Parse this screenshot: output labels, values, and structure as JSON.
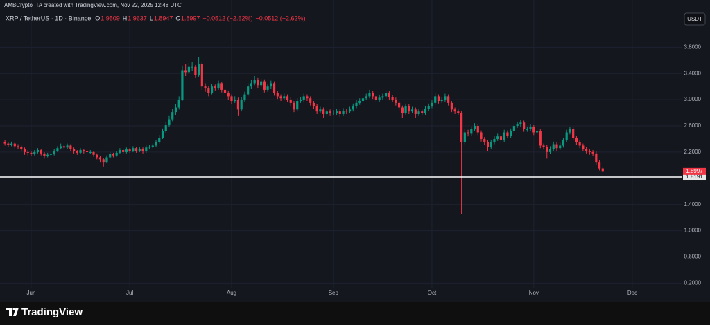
{
  "header": {
    "credit": "AMBCrypto_TA created with TradingView.com, Nov 22, 2025 12:48 UTC"
  },
  "chart_data": {
    "type": "candlestick",
    "symbol": "XRP / TetherUS · 1D · Binance",
    "ohlc_legend": [
      {
        "key": "O",
        "value": 1.9509
      },
      {
        "key": "H",
        "value": 1.9637
      },
      {
        "key": "L",
        "value": 1.8947
      },
      {
        "key": "C",
        "value": 1.8997
      }
    ],
    "change": [
      "−0.0512 (−2.62%)",
      "−0.0512 (−2.62%)"
    ],
    "currency": "USDT",
    "up_color": "#089981",
    "down_color": "#f23645",
    "grid": true,
    "xlim": [
      -1.5,
      206
    ],
    "xticks": [
      {
        "value": 8,
        "label": "Jun"
      },
      {
        "value": 38,
        "label": "Jul"
      },
      {
        "value": 69,
        "label": "Aug"
      },
      {
        "value": 100,
        "label": "Sep"
      },
      {
        "value": 130,
        "label": "Oct"
      },
      {
        "value": 161,
        "label": "Nov"
      },
      {
        "value": 191,
        "label": "Dec"
      }
    ],
    "ylim": [
      0.12,
      4.12
    ],
    "yticks": [
      {
        "value": 0.2,
        "label": "0.2000"
      },
      {
        "value": 0.6,
        "label": "0.6000"
      },
      {
        "value": 1.0,
        "label": "1.0000"
      },
      {
        "value": 1.4,
        "label": "1.4000"
      },
      {
        "value": 2.2,
        "label": "2.2000"
      },
      {
        "value": 2.6,
        "label": "2.6000"
      },
      {
        "value": 3.0,
        "label": "3.0000"
      },
      {
        "value": 3.4,
        "label": "3.4000"
      },
      {
        "value": 3.8,
        "label": "3.8000"
      }
    ],
    "last_price": {
      "value": 1.8997,
      "label": "1.8997"
    },
    "price_line": {
      "value": 1.8191,
      "label": "1.8191"
    },
    "ohlc": [
      [
        2.35,
        2.38,
        2.3,
        2.33
      ],
      [
        2.33,
        2.35,
        2.28,
        2.31
      ],
      [
        2.31,
        2.36,
        2.29,
        2.33
      ],
      [
        2.33,
        2.35,
        2.26,
        2.29
      ],
      [
        2.29,
        2.32,
        2.25,
        2.28
      ],
      [
        2.28,
        2.3,
        2.22,
        2.25
      ],
      [
        2.25,
        2.27,
        2.16,
        2.2
      ],
      [
        2.2,
        2.23,
        2.15,
        2.19
      ],
      [
        2.19,
        2.22,
        2.14,
        2.17
      ],
      [
        2.17,
        2.23,
        2.15,
        2.2
      ],
      [
        2.2,
        2.26,
        2.18,
        2.23
      ],
      [
        2.23,
        2.25,
        2.15,
        2.18
      ],
      [
        2.18,
        2.2,
        2.1,
        2.14
      ],
      [
        2.14,
        2.19,
        2.12,
        2.16
      ],
      [
        2.16,
        2.2,
        2.13,
        2.17
      ],
      [
        2.17,
        2.25,
        2.15,
        2.22
      ],
      [
        2.22,
        2.29,
        2.2,
        2.26
      ],
      [
        2.26,
        2.33,
        2.24,
        2.29
      ],
      [
        2.29,
        2.31,
        2.24,
        2.27
      ],
      [
        2.27,
        2.33,
        2.25,
        2.3
      ],
      [
        2.3,
        2.32,
        2.22,
        2.25
      ],
      [
        2.25,
        2.27,
        2.18,
        2.21
      ],
      [
        2.21,
        2.23,
        2.16,
        2.19
      ],
      [
        2.19,
        2.26,
        2.17,
        2.23
      ],
      [
        2.23,
        2.25,
        2.18,
        2.21
      ],
      [
        2.21,
        2.24,
        2.17,
        2.2
      ],
      [
        2.2,
        2.23,
        2.17,
        2.2
      ],
      [
        2.2,
        2.22,
        2.13,
        2.16
      ],
      [
        2.16,
        2.18,
        2.09,
        2.12
      ],
      [
        2.12,
        2.14,
        2.05,
        2.09
      ],
      [
        2.09,
        2.11,
        1.98,
        2.05
      ],
      [
        2.05,
        2.15,
        2.03,
        2.12
      ],
      [
        2.12,
        2.2,
        2.1,
        2.17
      ],
      [
        2.17,
        2.19,
        2.12,
        2.15
      ],
      [
        2.15,
        2.22,
        2.13,
        2.19
      ],
      [
        2.19,
        2.26,
        2.17,
        2.23
      ],
      [
        2.23,
        2.25,
        2.17,
        2.2
      ],
      [
        2.2,
        2.27,
        2.18,
        2.24
      ],
      [
        2.24,
        2.26,
        2.19,
        2.22
      ],
      [
        2.22,
        2.29,
        2.2,
        2.26
      ],
      [
        2.26,
        2.28,
        2.19,
        2.22
      ],
      [
        2.22,
        2.28,
        2.2,
        2.25
      ],
      [
        2.25,
        2.27,
        2.18,
        2.21
      ],
      [
        2.21,
        2.3,
        2.19,
        2.27
      ],
      [
        2.27,
        2.31,
        2.25,
        2.28
      ],
      [
        2.28,
        2.33,
        2.26,
        2.3
      ],
      [
        2.3,
        2.38,
        2.28,
        2.35
      ],
      [
        2.35,
        2.46,
        2.33,
        2.42
      ],
      [
        2.42,
        2.56,
        2.4,
        2.52
      ],
      [
        2.52,
        2.66,
        2.49,
        2.61
      ],
      [
        2.61,
        2.75,
        2.58,
        2.7
      ],
      [
        2.7,
        2.86,
        2.67,
        2.81
      ],
      [
        2.81,
        2.93,
        2.76,
        2.88
      ],
      [
        2.88,
        3.05,
        2.85,
        3.0
      ],
      [
        3.0,
        3.52,
        2.98,
        3.45
      ],
      [
        3.45,
        3.55,
        3.36,
        3.42
      ],
      [
        3.42,
        3.56,
        3.39,
        3.5
      ],
      [
        3.5,
        3.58,
        3.44,
        3.5
      ],
      [
        3.5,
        3.53,
        3.33,
        3.38
      ],
      [
        3.38,
        3.65,
        3.35,
        3.55
      ],
      [
        3.55,
        3.58,
        3.15,
        3.2
      ],
      [
        3.2,
        3.25,
        3.12,
        3.18
      ],
      [
        3.18,
        3.21,
        3.05,
        3.1
      ],
      [
        3.1,
        3.24,
        3.08,
        3.2
      ],
      [
        3.2,
        3.23,
        3.14,
        3.18
      ],
      [
        3.18,
        3.29,
        3.15,
        3.25
      ],
      [
        3.25,
        3.27,
        3.11,
        3.15
      ],
      [
        3.15,
        3.18,
        3.06,
        3.1
      ],
      [
        3.1,
        3.13,
        3.0,
        3.05
      ],
      [
        3.05,
        3.08,
        2.93,
        2.98
      ],
      [
        2.98,
        3.05,
        2.95,
        3.0
      ],
      [
        3.0,
        3.03,
        2.75,
        2.85
      ],
      [
        2.85,
        3.04,
        2.82,
        3.0
      ],
      [
        3.0,
        3.12,
        2.97,
        3.08
      ],
      [
        3.08,
        3.25,
        3.05,
        3.2
      ],
      [
        3.2,
        3.3,
        3.17,
        3.25
      ],
      [
        3.25,
        3.36,
        3.22,
        3.3
      ],
      [
        3.3,
        3.33,
        3.18,
        3.22
      ],
      [
        3.22,
        3.32,
        3.19,
        3.28
      ],
      [
        3.28,
        3.31,
        3.11,
        3.15
      ],
      [
        3.15,
        3.24,
        3.12,
        3.2
      ],
      [
        3.2,
        3.29,
        3.17,
        3.25
      ],
      [
        3.25,
        3.28,
        3.06,
        3.1
      ],
      [
        3.1,
        3.13,
        3.01,
        3.05
      ],
      [
        3.05,
        3.08,
        2.98,
        3.02
      ],
      [
        3.02,
        3.09,
        2.99,
        3.05
      ],
      [
        3.05,
        3.08,
        2.96,
        3.0
      ],
      [
        3.0,
        3.03,
        2.91,
        2.95
      ],
      [
        2.95,
        2.98,
        2.81,
        2.85
      ],
      [
        2.85,
        3.02,
        2.82,
        2.98
      ],
      [
        2.98,
        3.04,
        2.95,
        3.0
      ],
      [
        3.0,
        3.09,
        2.97,
        3.05
      ],
      [
        3.05,
        3.08,
        2.98,
        3.02
      ],
      [
        3.02,
        3.05,
        2.91,
        2.95
      ],
      [
        2.95,
        2.98,
        2.86,
        2.9
      ],
      [
        2.9,
        2.93,
        2.78,
        2.82
      ],
      [
        2.82,
        2.89,
        2.79,
        2.85
      ],
      [
        2.85,
        2.88,
        2.72,
        2.78
      ],
      [
        2.78,
        2.86,
        2.75,
        2.82
      ],
      [
        2.82,
        2.85,
        2.75,
        2.79
      ],
      [
        2.79,
        2.84,
        2.76,
        2.8
      ],
      [
        2.8,
        2.86,
        2.77,
        2.82
      ],
      [
        2.82,
        2.85,
        2.74,
        2.78
      ],
      [
        2.78,
        2.87,
        2.75,
        2.83
      ],
      [
        2.83,
        2.86,
        2.78,
        2.82
      ],
      [
        2.82,
        2.89,
        2.79,
        2.85
      ],
      [
        2.85,
        2.94,
        2.82,
        2.9
      ],
      [
        2.9,
        2.99,
        2.87,
        2.95
      ],
      [
        2.95,
        3.02,
        2.92,
        2.98
      ],
      [
        2.98,
        3.06,
        2.95,
        3.02
      ],
      [
        3.02,
        3.09,
        2.99,
        3.05
      ],
      [
        3.05,
        3.15,
        3.02,
        3.1
      ],
      [
        3.1,
        3.13,
        3.01,
        3.05
      ],
      [
        3.05,
        3.08,
        2.96,
        3.0
      ],
      [
        3.0,
        3.07,
        2.97,
        3.03
      ],
      [
        3.03,
        3.09,
        3.0,
        3.05
      ],
      [
        3.05,
        3.14,
        3.02,
        3.1
      ],
      [
        3.1,
        3.13,
        3.0,
        3.04
      ],
      [
        3.04,
        3.07,
        2.96,
        3.0
      ],
      [
        3.0,
        3.03,
        2.91,
        2.95
      ],
      [
        2.95,
        2.98,
        2.84,
        2.88
      ],
      [
        2.88,
        2.91,
        2.72,
        2.8
      ],
      [
        2.8,
        2.94,
        2.77,
        2.9
      ],
      [
        2.9,
        2.93,
        2.78,
        2.82
      ],
      [
        2.82,
        2.89,
        2.79,
        2.85
      ],
      [
        2.85,
        2.88,
        2.72,
        2.78
      ],
      [
        2.78,
        2.86,
        2.75,
        2.82
      ],
      [
        2.82,
        2.85,
        2.76,
        2.8
      ],
      [
        2.8,
        2.9,
        2.77,
        2.86
      ],
      [
        2.86,
        2.94,
        2.83,
        2.9
      ],
      [
        2.9,
        2.99,
        2.87,
        2.95
      ],
      [
        2.95,
        3.1,
        2.92,
        3.05
      ],
      [
        3.05,
        3.08,
        2.94,
        2.98
      ],
      [
        2.98,
        3.04,
        2.95,
        3.0
      ],
      [
        3.0,
        3.09,
        2.97,
        3.05
      ],
      [
        3.05,
        3.08,
        2.91,
        2.95
      ],
      [
        2.95,
        2.98,
        2.81,
        2.85
      ],
      [
        2.85,
        2.88,
        2.78,
        2.82
      ],
      [
        2.82,
        2.85,
        2.76,
        2.8
      ],
      [
        2.8,
        2.82,
        1.25,
        2.35
      ],
      [
        2.35,
        2.55,
        2.32,
        2.5
      ],
      [
        2.5,
        2.54,
        2.44,
        2.48
      ],
      [
        2.48,
        2.59,
        2.45,
        2.55
      ],
      [
        2.55,
        2.64,
        2.52,
        2.6
      ],
      [
        2.6,
        2.63,
        2.46,
        2.5
      ],
      [
        2.5,
        2.53,
        2.36,
        2.4
      ],
      [
        2.4,
        2.43,
        2.31,
        2.35
      ],
      [
        2.35,
        2.38,
        2.22,
        2.28
      ],
      [
        2.28,
        2.39,
        2.25,
        2.35
      ],
      [
        2.35,
        2.44,
        2.32,
        2.4
      ],
      [
        2.4,
        2.48,
        2.37,
        2.44
      ],
      [
        2.44,
        2.47,
        2.34,
        2.38
      ],
      [
        2.38,
        2.54,
        2.35,
        2.5
      ],
      [
        2.5,
        2.53,
        2.41,
        2.45
      ],
      [
        2.45,
        2.56,
        2.42,
        2.52
      ],
      [
        2.52,
        2.64,
        2.49,
        2.6
      ],
      [
        2.6,
        2.66,
        2.57,
        2.62
      ],
      [
        2.62,
        2.69,
        2.59,
        2.65
      ],
      [
        2.65,
        2.68,
        2.51,
        2.55
      ],
      [
        2.55,
        2.59,
        2.51,
        2.55
      ],
      [
        2.55,
        2.62,
        2.52,
        2.58
      ],
      [
        2.58,
        2.61,
        2.46,
        2.5
      ],
      [
        2.5,
        2.56,
        2.47,
        2.52
      ],
      [
        2.52,
        2.55,
        2.26,
        2.3
      ],
      [
        2.3,
        2.33,
        2.24,
        2.28
      ],
      [
        2.28,
        2.31,
        2.1,
        2.2
      ],
      [
        2.2,
        2.29,
        2.17,
        2.25
      ],
      [
        2.25,
        2.36,
        2.22,
        2.32
      ],
      [
        2.32,
        2.35,
        2.22,
        2.26
      ],
      [
        2.26,
        2.34,
        2.23,
        2.3
      ],
      [
        2.3,
        2.42,
        2.27,
        2.38
      ],
      [
        2.38,
        2.54,
        2.35,
        2.5
      ],
      [
        2.5,
        2.59,
        2.47,
        2.55
      ],
      [
        2.55,
        2.58,
        2.38,
        2.42
      ],
      [
        2.42,
        2.45,
        2.31,
        2.35
      ],
      [
        2.35,
        2.38,
        2.26,
        2.3
      ],
      [
        2.3,
        2.33,
        2.21,
        2.25
      ],
      [
        2.25,
        2.28,
        2.18,
        2.22
      ],
      [
        2.22,
        2.25,
        2.16,
        2.2
      ],
      [
        2.2,
        2.23,
        2.14,
        2.18
      ],
      [
        2.18,
        2.21,
        2.01,
        2.05
      ],
      [
        2.05,
        2.08,
        1.92,
        1.95
      ],
      [
        1.9509,
        1.9637,
        1.8947,
        1.8997
      ]
    ]
  },
  "footer": {
    "brand": "TradingView"
  }
}
